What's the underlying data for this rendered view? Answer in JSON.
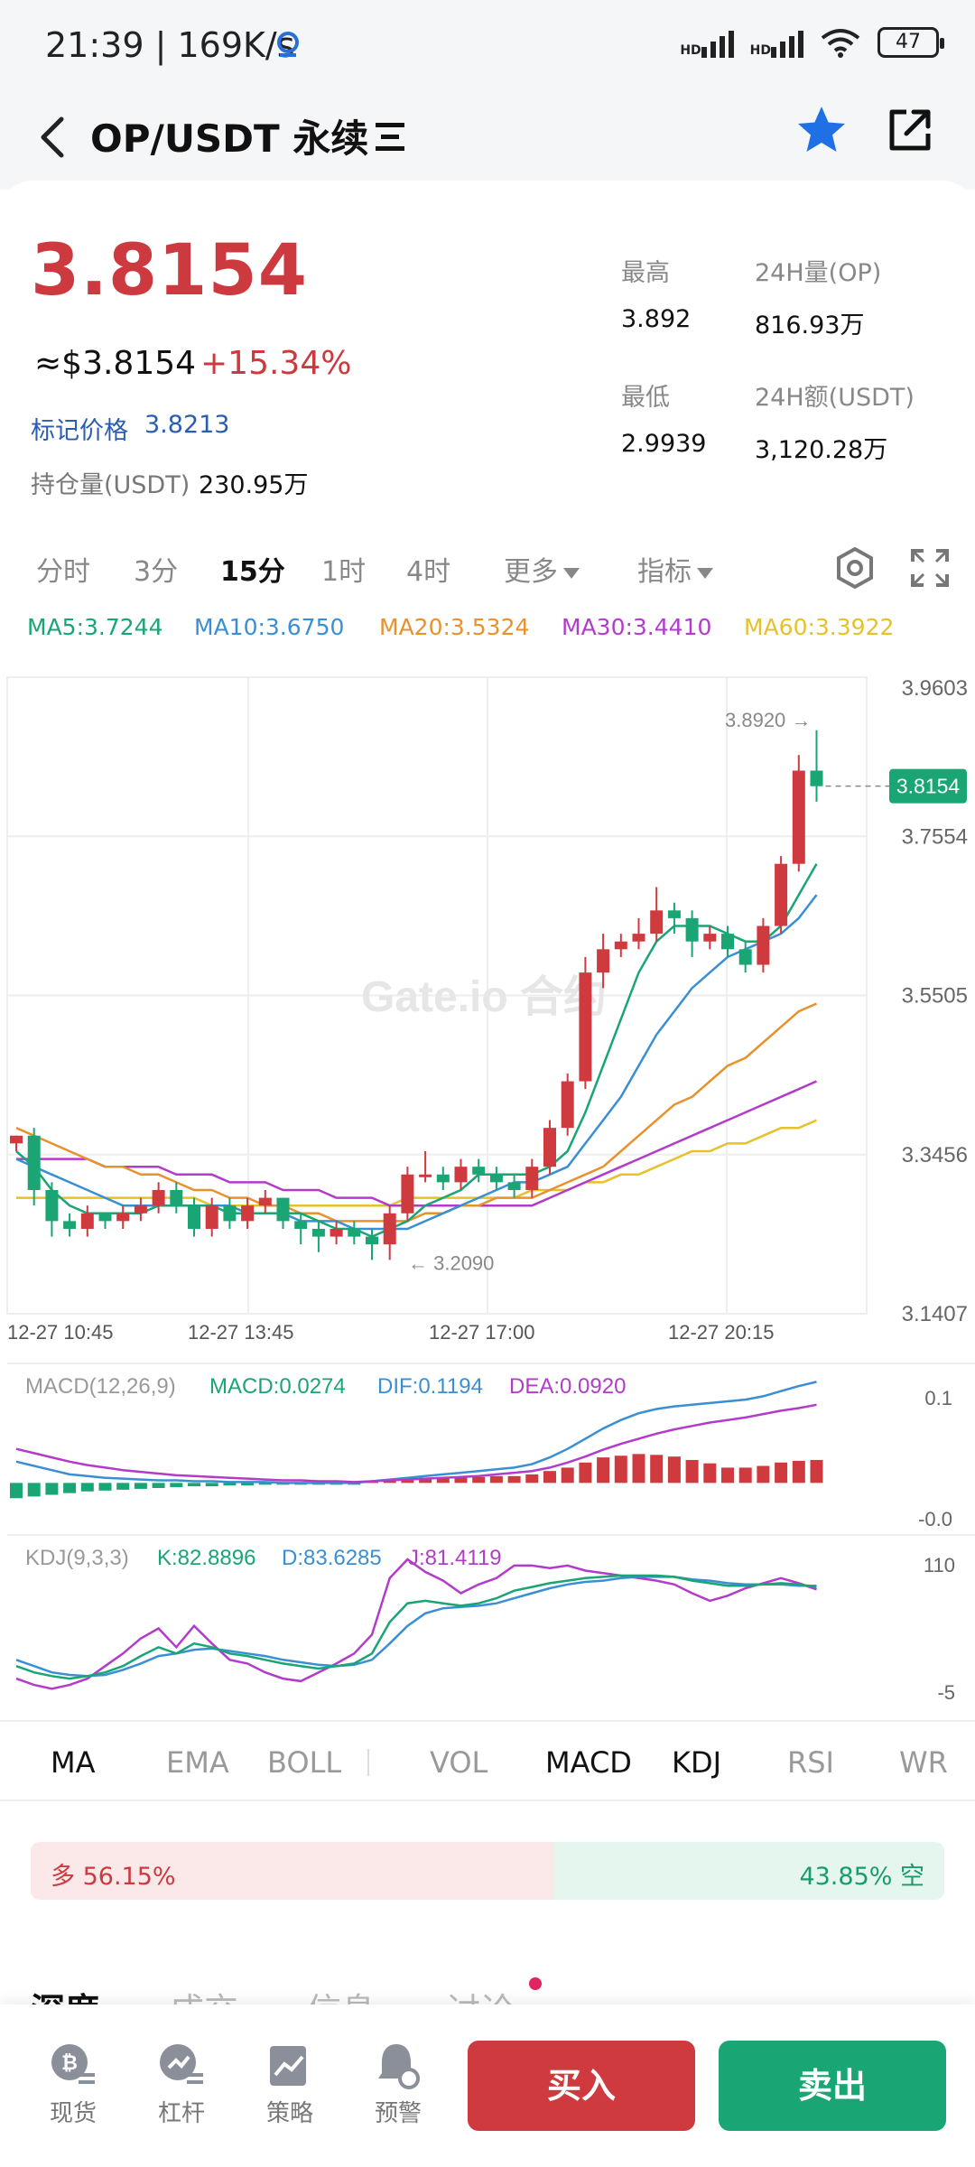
{
  "status_bar": {
    "time": "21:39",
    "speed": "169K/s",
    "signal1": "HD",
    "signal2": "HD",
    "battery": "47"
  },
  "header": {
    "title": "OP/USDT 永续"
  },
  "ticker": {
    "last_price": "3.8154",
    "usd_price": "≈$3.8154",
    "change": "+15.34%",
    "mark_label": "标记价格",
    "mark_value": "3.8213",
    "oi_label": "持仓量(USDT)",
    "oi_value": "230.95万",
    "high_label": "最高",
    "high_value": "3.892",
    "vol_label": "24H量(OP)",
    "vol_value": "816.93万",
    "low_label": "最低",
    "low_value": "2.9939",
    "amount_label": "24H额(USDT)",
    "amount_value": "3,120.28万"
  },
  "intervals": [
    "分时",
    "3分",
    "15分",
    "1时",
    "4时"
  ],
  "more_label": "更多",
  "indicator_label": "指标",
  "ma_legend": [
    {
      "text": "MA5:3.7244",
      "color": "#1aa574"
    },
    {
      "text": "MA10:3.6750",
      "color": "#3a8fd4"
    },
    {
      "text": "MA20:3.5324",
      "color": "#e8922e"
    },
    {
      "text": "MA30:3.4410",
      "color": "#b23cc9"
    },
    {
      "text": "MA60:3.3922",
      "color": "#e6c12a"
    }
  ],
  "chart_data": {
    "type": "candlestick",
    "y_ticks": [
      "3.9603",
      "3.7554",
      "3.5505",
      "3.3456",
      "3.1407"
    ],
    "ylim": [
      3.1407,
      3.9603
    ],
    "x_ticks": [
      "12-27 10:45",
      "12-27 13:45",
      "12-27 17:00",
      "12-27 20:15"
    ],
    "high_marker": "3.8920 →",
    "low_marker": "← 3.2090",
    "current_price_tag": "3.8154",
    "watermark": "Gate.io 合约",
    "candles": [
      [
        3.36,
        3.37,
        3.37,
        3.35
      ],
      [
        3.37,
        3.3,
        3.38,
        3.28
      ],
      [
        3.3,
        3.26,
        3.31,
        3.24
      ],
      [
        3.26,
        3.25,
        3.27,
        3.24
      ],
      [
        3.25,
        3.27,
        3.28,
        3.24
      ],
      [
        3.27,
        3.26,
        3.27,
        3.25
      ],
      [
        3.26,
        3.27,
        3.28,
        3.25
      ],
      [
        3.27,
        3.28,
        3.29,
        3.26
      ],
      [
        3.28,
        3.3,
        3.31,
        3.27
      ],
      [
        3.3,
        3.28,
        3.31,
        3.27
      ],
      [
        3.28,
        3.25,
        3.29,
        3.24
      ],
      [
        3.25,
        3.28,
        3.29,
        3.24
      ],
      [
        3.28,
        3.26,
        3.29,
        3.25
      ],
      [
        3.26,
        3.28,
        3.29,
        3.25
      ],
      [
        3.28,
        3.29,
        3.3,
        3.27
      ],
      [
        3.29,
        3.26,
        3.29,
        3.25
      ],
      [
        3.26,
        3.25,
        3.27,
        3.23
      ],
      [
        3.25,
        3.24,
        3.26,
        3.22
      ],
      [
        3.24,
        3.25,
        3.26,
        3.23
      ],
      [
        3.25,
        3.24,
        3.26,
        3.23
      ],
      [
        3.24,
        3.23,
        3.25,
        3.21
      ],
      [
        3.23,
        3.27,
        3.28,
        3.21
      ],
      [
        3.27,
        3.32,
        3.33,
        3.26
      ],
      [
        3.32,
        3.32,
        3.35,
        3.31
      ],
      [
        3.32,
        3.31,
        3.33,
        3.3
      ],
      [
        3.31,
        3.33,
        3.34,
        3.3
      ],
      [
        3.33,
        3.32,
        3.34,
        3.31
      ],
      [
        3.32,
        3.31,
        3.33,
        3.3
      ],
      [
        3.31,
        3.3,
        3.32,
        3.29
      ],
      [
        3.3,
        3.33,
        3.34,
        3.29
      ],
      [
        3.33,
        3.38,
        3.39,
        3.32
      ],
      [
        3.38,
        3.44,
        3.45,
        3.37
      ],
      [
        3.44,
        3.58,
        3.6,
        3.43
      ],
      [
        3.58,
        3.61,
        3.63,
        3.56
      ],
      [
        3.61,
        3.62,
        3.63,
        3.6
      ],
      [
        3.62,
        3.63,
        3.65,
        3.61
      ],
      [
        3.63,
        3.66,
        3.69,
        3.62
      ],
      [
        3.66,
        3.65,
        3.67,
        3.63
      ],
      [
        3.65,
        3.62,
        3.66,
        3.6
      ],
      [
        3.62,
        3.63,
        3.64,
        3.61
      ],
      [
        3.63,
        3.61,
        3.64,
        3.6
      ],
      [
        3.61,
        3.59,
        3.62,
        3.58
      ],
      [
        3.59,
        3.64,
        3.65,
        3.58
      ],
      [
        3.64,
        3.72,
        3.73,
        3.63
      ],
      [
        3.72,
        3.84,
        3.86,
        3.71
      ],
      [
        3.84,
        3.82,
        3.892,
        3.8
      ]
    ],
    "ma5": [
      3.35,
      3.33,
      3.3,
      3.28,
      3.27,
      3.27,
      3.27,
      3.27,
      3.28,
      3.28,
      3.28,
      3.28,
      3.27,
      3.27,
      3.27,
      3.27,
      3.27,
      3.26,
      3.25,
      3.25,
      3.24,
      3.25,
      3.26,
      3.28,
      3.29,
      3.3,
      3.32,
      3.32,
      3.32,
      3.32,
      3.33,
      3.35,
      3.4,
      3.46,
      3.52,
      3.58,
      3.62,
      3.64,
      3.64,
      3.64,
      3.63,
      3.62,
      3.62,
      3.64,
      3.68,
      3.72
    ],
    "ma10": [
      3.34,
      3.33,
      3.32,
      3.31,
      3.3,
      3.29,
      3.28,
      3.28,
      3.28,
      3.28,
      3.28,
      3.28,
      3.28,
      3.27,
      3.27,
      3.27,
      3.26,
      3.26,
      3.26,
      3.25,
      3.25,
      3.25,
      3.25,
      3.26,
      3.27,
      3.28,
      3.29,
      3.3,
      3.31,
      3.31,
      3.32,
      3.33,
      3.36,
      3.39,
      3.42,
      3.46,
      3.5,
      3.53,
      3.56,
      3.58,
      3.6,
      3.61,
      3.62,
      3.63,
      3.65,
      3.68
    ],
    "ma20": [
      3.38,
      3.37,
      3.36,
      3.35,
      3.34,
      3.33,
      3.33,
      3.32,
      3.32,
      3.31,
      3.3,
      3.3,
      3.29,
      3.29,
      3.28,
      3.28,
      3.27,
      3.27,
      3.26,
      3.26,
      3.26,
      3.26,
      3.26,
      3.27,
      3.27,
      3.28,
      3.28,
      3.29,
      3.29,
      3.29,
      3.3,
      3.31,
      3.32,
      3.33,
      3.35,
      3.37,
      3.39,
      3.41,
      3.42,
      3.44,
      3.46,
      3.47,
      3.49,
      3.51,
      3.53,
      3.54
    ],
    "ma30": [
      3.34,
      3.34,
      3.34,
      3.34,
      3.34,
      3.33,
      3.33,
      3.33,
      3.33,
      3.32,
      3.32,
      3.32,
      3.31,
      3.31,
      3.31,
      3.3,
      3.3,
      3.3,
      3.29,
      3.29,
      3.29,
      3.28,
      3.28,
      3.28,
      3.28,
      3.28,
      3.28,
      3.28,
      3.28,
      3.28,
      3.29,
      3.3,
      3.31,
      3.32,
      3.33,
      3.34,
      3.35,
      3.36,
      3.37,
      3.38,
      3.39,
      3.4,
      3.41,
      3.42,
      3.43,
      3.44
    ],
    "ma60": [
      3.29,
      3.29,
      3.29,
      3.29,
      3.29,
      3.29,
      3.29,
      3.29,
      3.29,
      3.29,
      3.29,
      3.28,
      3.28,
      3.28,
      3.28,
      3.28,
      3.28,
      3.28,
      3.28,
      3.28,
      3.28,
      3.28,
      3.29,
      3.29,
      3.29,
      3.29,
      3.29,
      3.29,
      3.29,
      3.3,
      3.3,
      3.3,
      3.31,
      3.31,
      3.32,
      3.32,
      3.33,
      3.34,
      3.35,
      3.35,
      3.36,
      3.36,
      3.37,
      3.38,
      3.38,
      3.39
    ]
  },
  "macd": {
    "label": "MACD(12,26,9)",
    "macd_text": "MACD:0.0274",
    "dif_text": "DIF:0.1194",
    "dea_text": "DEA:0.0920",
    "y_ticks": [
      "0.1",
      "-0.0"
    ],
    "ylim": [
      -0.0,
      0.12
    ],
    "hist": [
      -0.018,
      -0.016,
      -0.014,
      -0.012,
      -0.01,
      -0.009,
      -0.008,
      -0.007,
      -0.006,
      -0.005,
      -0.004,
      -0.004,
      -0.003,
      -0.003,
      -0.002,
      -0.002,
      -0.002,
      -0.002,
      -0.002,
      -0.002,
      0.002,
      0.004,
      0.005,
      0.006,
      0.006,
      0.007,
      0.007,
      0.008,
      0.008,
      0.01,
      0.014,
      0.018,
      0.024,
      0.03,
      0.032,
      0.034,
      0.033,
      0.031,
      0.027,
      0.023,
      0.018,
      0.018,
      0.02,
      0.024,
      0.026,
      0.027
    ],
    "dif": [
      0.025,
      0.02,
      0.015,
      0.01,
      0.008,
      0.006,
      0.005,
      0.004,
      0.003,
      0.003,
      0.002,
      0.002,
      0.001,
      0.001,
      0.001,
      0.0,
      0.0,
      0.0,
      0.0,
      0.0,
      0.002,
      0.004,
      0.006,
      0.008,
      0.01,
      0.012,
      0.014,
      0.016,
      0.018,
      0.022,
      0.03,
      0.04,
      0.052,
      0.064,
      0.074,
      0.082,
      0.087,
      0.09,
      0.092,
      0.094,
      0.096,
      0.098,
      0.102,
      0.108,
      0.114,
      0.119
    ],
    "dea": [
      0.04,
      0.035,
      0.03,
      0.025,
      0.021,
      0.018,
      0.015,
      0.013,
      0.011,
      0.009,
      0.008,
      0.007,
      0.006,
      0.005,
      0.004,
      0.003,
      0.003,
      0.002,
      0.002,
      0.001,
      0.002,
      0.003,
      0.004,
      0.005,
      0.006,
      0.007,
      0.008,
      0.01,
      0.012,
      0.014,
      0.018,
      0.024,
      0.031,
      0.039,
      0.046,
      0.052,
      0.058,
      0.063,
      0.067,
      0.071,
      0.074,
      0.077,
      0.081,
      0.085,
      0.088,
      0.092
    ]
  },
  "kdj": {
    "label": "KDJ(9,3,3)",
    "k_text": "K:82.8896",
    "d_text": "D:83.6285",
    "j_text": "J:81.4119",
    "y_ticks": [
      "110",
      "-5"
    ],
    "ylim": [
      -5,
      110
    ],
    "k": [
      20,
      15,
      12,
      10,
      12,
      15,
      20,
      28,
      35,
      30,
      38,
      35,
      30,
      28,
      25,
      22,
      20,
      18,
      20,
      22,
      30,
      55,
      70,
      72,
      70,
      68,
      70,
      74,
      80,
      83,
      86,
      88,
      90,
      91,
      92,
      92,
      92,
      91,
      88,
      86,
      84,
      84,
      85,
      86,
      85,
      83
    ],
    "d": [
      25,
      20,
      15,
      13,
      12,
      13,
      17,
      22,
      28,
      30,
      33,
      34,
      32,
      30,
      28,
      25,
      23,
      21,
      20,
      21,
      25,
      38,
      52,
      62,
      66,
      67,
      68,
      70,
      74,
      78,
      82,
      85,
      87,
      88,
      90,
      91,
      91,
      91,
      89,
      88,
      86,
      85,
      85,
      85,
      84,
      84
    ],
    "j": [
      10,
      5,
      2,
      5,
      10,
      20,
      30,
      42,
      50,
      35,
      52,
      38,
      25,
      22,
      15,
      10,
      8,
      15,
      22,
      30,
      45,
      90,
      105,
      95,
      88,
      78,
      85,
      90,
      100,
      100,
      98,
      100,
      96,
      94,
      92,
      90,
      88,
      85,
      78,
      72,
      76,
      82,
      86,
      90,
      86,
      81
    ]
  },
  "indicator_tabs": [
    "MA",
    "EMA",
    "BOLL",
    "VOL",
    "MACD",
    "KDJ",
    "RSI",
    "WR"
  ],
  "ratio": {
    "long_text": "多 56.15%",
    "short_text": "43.85% 空",
    "long_fraction": 0.5615
  },
  "sub_tabs": [
    "深度",
    "成交",
    "信息",
    "讨论"
  ],
  "bottom_nav": {
    "spot": "现货",
    "margin": "杠杆",
    "strategy": "策略",
    "alert": "预警",
    "buy": "买入",
    "sell": "卖出"
  },
  "colors": {
    "up": "#cf3a3e",
    "down": "#1aa574",
    "grid": "#eeeeee"
  }
}
